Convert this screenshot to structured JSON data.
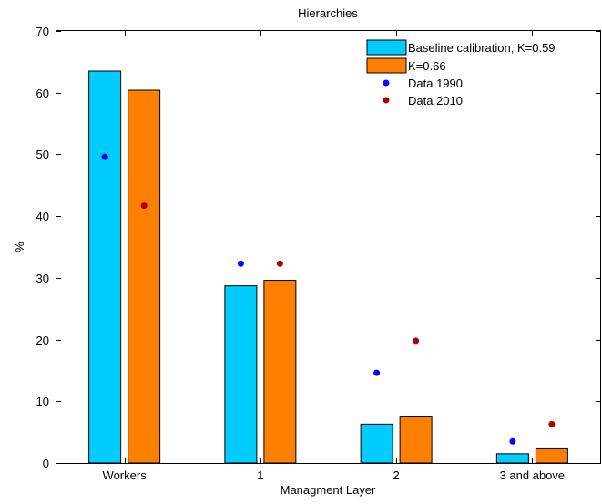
{
  "colors": {
    "series_baseline": "#00CCFF",
    "series_k066": "#FF8000",
    "data_1990": "#0000FF",
    "data_2010": "#AA0000"
  },
  "chart_data": {
    "type": "bar",
    "title": "Hierarchies",
    "xlabel": "Managment Layer",
    "ylabel": "%",
    "categories": [
      "Workers",
      "1",
      "2",
      "3 and above"
    ],
    "ylim": [
      0,
      70
    ],
    "yticks": [
      0,
      10,
      20,
      30,
      40,
      50,
      60,
      70
    ],
    "grid": false,
    "legend_position": "top-right",
    "series": [
      {
        "name": "Baseline calibration, K=0.59",
        "kind": "bar",
        "values": [
          63.5,
          28.7,
          6.3,
          1.5
        ]
      },
      {
        "name": "K=0.66",
        "kind": "bar",
        "values": [
          60.4,
          29.6,
          7.6,
          2.3
        ]
      }
    ],
    "points": [
      {
        "name": "Data 1990",
        "kind": "dot",
        "values": [
          49.6,
          32.3,
          14.6,
          3.5
        ]
      },
      {
        "name": "Data 2010",
        "kind": "dot",
        "values": [
          41.7,
          32.3,
          19.8,
          6.3
        ]
      }
    ]
  }
}
